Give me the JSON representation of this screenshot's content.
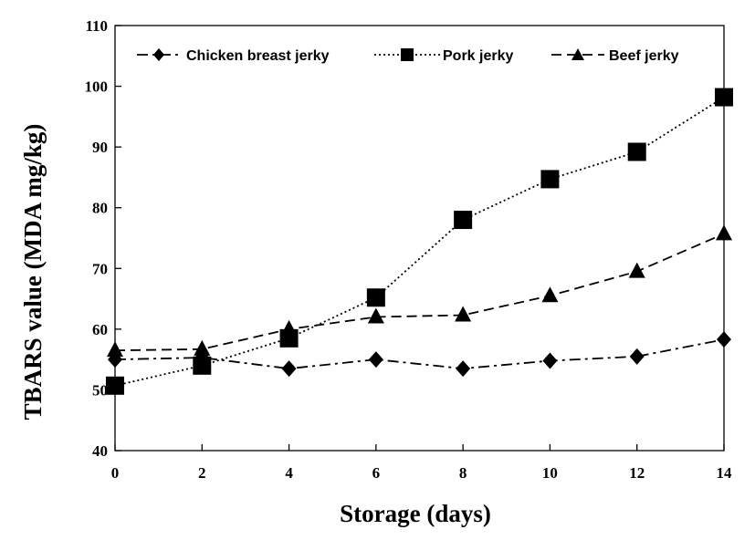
{
  "chart_data": {
    "type": "line",
    "title": "",
    "xlabel": "Storage (days)",
    "ylabel": "TBARS value (MDA mg/kg)",
    "x": [
      0,
      2,
      4,
      6,
      8,
      10,
      12,
      14
    ],
    "xlim": [
      0,
      14
    ],
    "ylim": [
      40,
      110
    ],
    "xticks": [
      "0",
      "2",
      "4",
      "6",
      "8",
      "10",
      "12",
      "14"
    ],
    "yticks": [
      "40",
      "50",
      "60",
      "70",
      "80",
      "90",
      "100",
      "110"
    ],
    "grid": false,
    "legend_position": "top",
    "series": [
      {
        "name": "Chicken breast jerky",
        "marker": "diamond",
        "line_style": "dash-dot",
        "values": [
          55.0,
          55.3,
          53.5,
          55.0,
          53.5,
          54.8,
          55.5,
          58.3
        ]
      },
      {
        "name": "Pork jerky",
        "marker": "square",
        "line_style": "dotted",
        "values": [
          50.7,
          54.0,
          58.5,
          65.2,
          78.0,
          84.7,
          89.2,
          98.2
        ]
      },
      {
        "name": "Beef jerky",
        "marker": "triangle",
        "line_style": "dashed",
        "values": [
          56.5,
          56.7,
          60.0,
          62.0,
          62.3,
          65.5,
          69.5,
          75.7
        ]
      }
    ]
  }
}
